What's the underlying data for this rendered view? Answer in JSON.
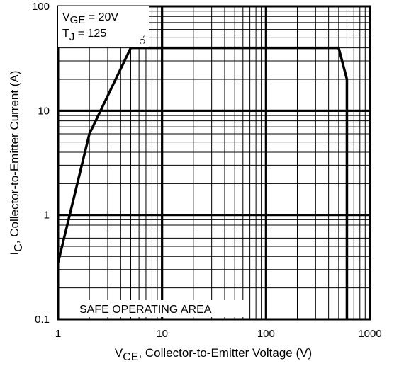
{
  "chart_data": {
    "type": "line",
    "x_scale": "log",
    "y_scale": "log",
    "xlim": [
      1,
      1000
    ],
    "ylim": [
      0.1,
      100
    ],
    "x_ticks": [
      1,
      10,
      100,
      1000
    ],
    "x_tick_labels": [
      "1",
      "10",
      "100",
      "1000"
    ],
    "y_ticks": [
      0.1,
      1,
      10,
      100
    ],
    "y_tick_labels": [
      "0.1",
      "1",
      "10",
      "100"
    ],
    "xlabel": {
      "main": "V",
      "sub": "CE",
      "rest": ", Collector-to-Emitter Voltage (V)"
    },
    "ylabel": {
      "main": "I",
      "sub": "C",
      "rest": ",  Collector-to-Emitter Current (A)"
    },
    "grid": true,
    "annotations": {
      "vge": {
        "main": "V",
        "sub": "GE",
        "rest": " = 20V"
      },
      "tj": {
        "main": "T",
        "sub": "J",
        "rest": "   = 125",
        "unit": "°C"
      },
      "region_label": "SAFE OPERATING AREA"
    },
    "series": [
      {
        "x": [
          1,
          2,
          5,
          500,
          600,
          600
        ],
        "y": [
          0.35,
          6,
          40,
          40,
          20,
          0.1
        ]
      }
    ],
    "colors": {
      "line": "#000000",
      "grid": "#000000",
      "background": "#ffffff"
    }
  }
}
